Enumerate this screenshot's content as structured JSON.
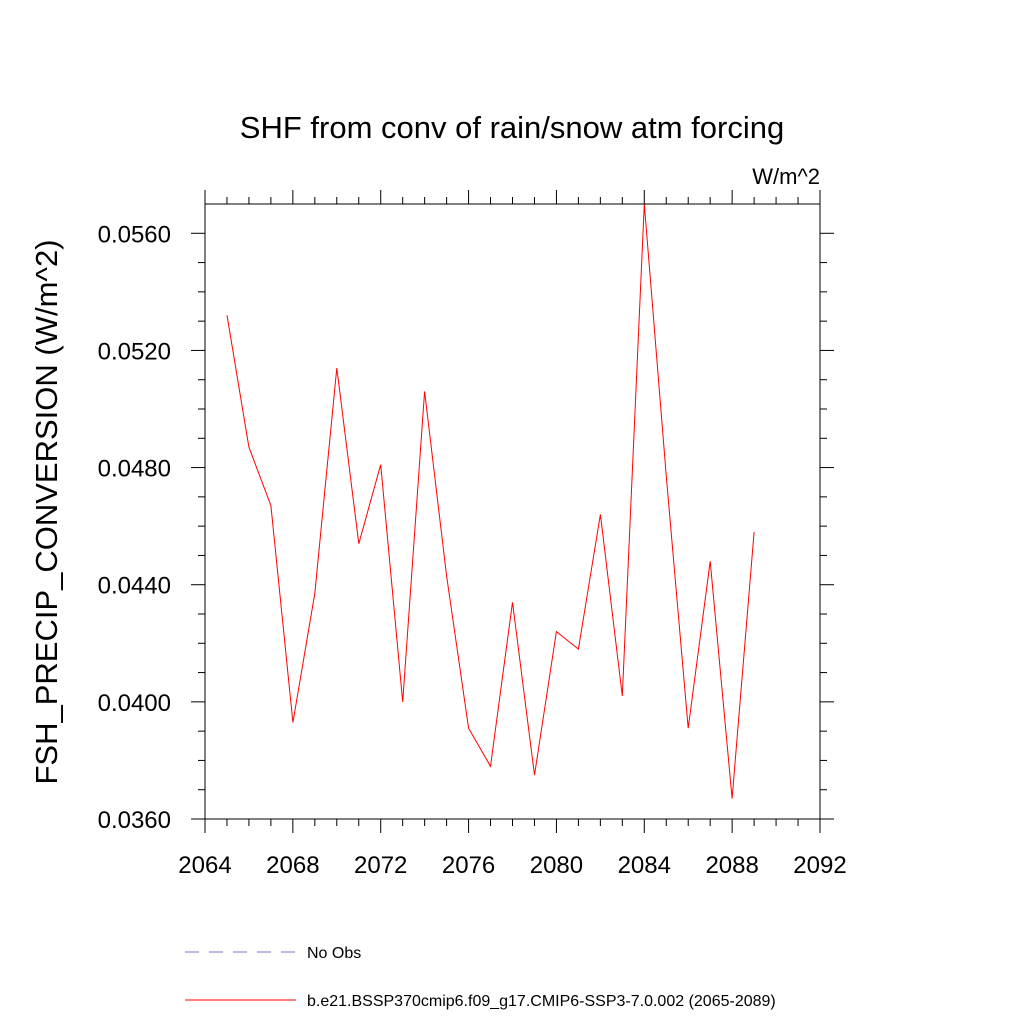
{
  "chart_data": {
    "type": "line",
    "title": "SHF from conv of rain/snow atm forcing",
    "units_label": "W/m^2",
    "xlabel": "",
    "ylabel": "FSH_PRECIP_CONVERSION  (W/m^2)",
    "xlim": [
      2064,
      2092
    ],
    "ylim": [
      0.036,
      0.057
    ],
    "x_ticks": [
      2064,
      2068,
      2072,
      2076,
      2080,
      2084,
      2088,
      2092
    ],
    "x_tick_labels": [
      "2064",
      "2068",
      "2072",
      "2076",
      "2080",
      "2084",
      "2088",
      "2092"
    ],
    "y_ticks": [
      0.036,
      0.04,
      0.044,
      0.048,
      0.052,
      0.056
    ],
    "y_tick_labels": [
      "0.0360",
      "0.0400",
      "0.0440",
      "0.0480",
      "0.0520",
      "0.0560"
    ],
    "series": [
      {
        "name": "b.e21.BSSP370cmip6.f09_g17.CMIP6-SSP3-7.0.002 (2065-2089)",
        "color": "#ff0000",
        "dash": "solid",
        "x": [
          2065,
          2066,
          2067,
          2068,
          2069,
          2070,
          2071,
          2072,
          2073,
          2074,
          2075,
          2076,
          2077,
          2078,
          2079,
          2080,
          2081,
          2082,
          2083,
          2084,
          2085,
          2086,
          2087,
          2088,
          2089
        ],
        "y": [
          0.0532,
          0.0487,
          0.0467,
          0.0393,
          0.0437,
          0.0514,
          0.0454,
          0.0481,
          0.04,
          0.0506,
          0.0443,
          0.0391,
          0.0378,
          0.0434,
          0.0375,
          0.0424,
          0.0418,
          0.0464,
          0.0402,
          0.057,
          0.0477,
          0.0391,
          0.0448,
          0.0367,
          0.0458
        ]
      }
    ],
    "legend": [
      {
        "label": "No Obs",
        "color": "#7b6fc9",
        "dash": "dashed"
      },
      {
        "label": "b.e21.BSSP370cmip6.f09_g17.CMIP6-SSP3-7.0.002 (2065-2089)",
        "color": "#ff0000",
        "dash": "solid"
      }
    ],
    "grid": false
  }
}
